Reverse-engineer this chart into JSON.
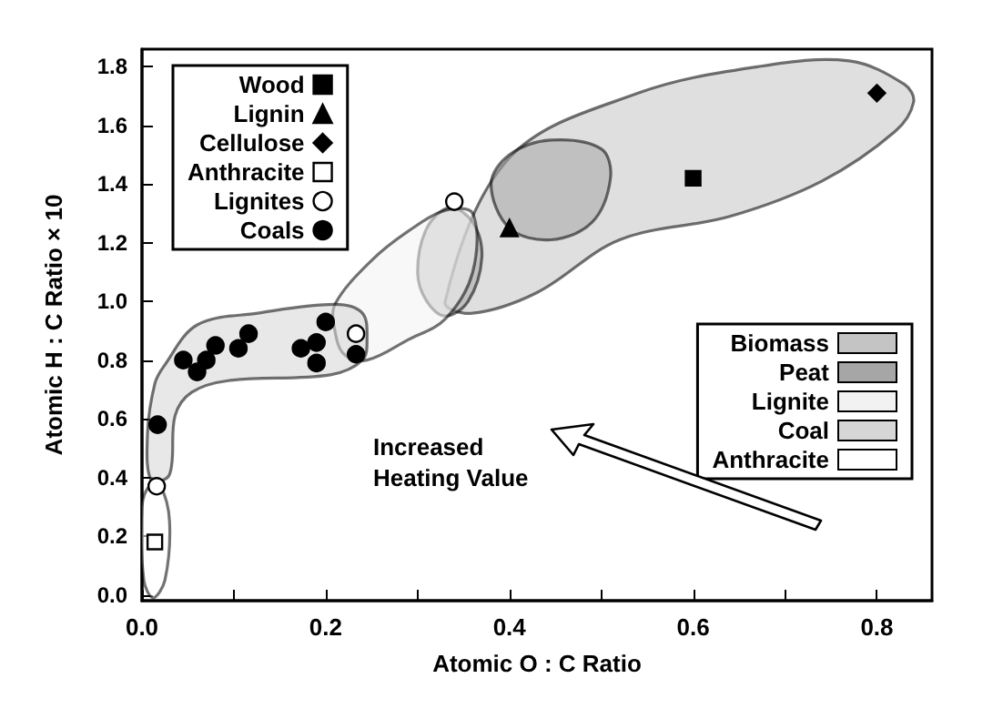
{
  "chart_data": {
    "type": "scatter",
    "xlabel": "Atomic O : C Ratio",
    "ylabel": "Atomic H : C Ratio × 10",
    "annotations": [
      "Increased Heating Value"
    ],
    "xlim": [
      0,
      0.86
    ],
    "ylim": [
      -0.02,
      1.86
    ],
    "xticks": [
      {
        "value": 0,
        "label": "0.0"
      },
      {
        "value": 0.1,
        "label": null
      },
      0.2,
      {
        "value": 0.3,
        "label": null
      },
      0.4,
      {
        "value": 0.5,
        "label": null
      },
      0.6,
      {
        "value": 0.7,
        "label": null
      },
      0.8
    ],
    "yticks": [
      {
        "value": 0,
        "label": "0.0"
      },
      0.2,
      0.4,
      0.6,
      0.8,
      {
        "value": 1,
        "label": "1.0"
      },
      1.2,
      1.4,
      1.6,
      1.8
    ],
    "grid": false,
    "legend": "top left",
    "series": [
      {
        "name": "Biomass",
        "type": "area",
        "color": "#c4c4c4",
        "x": [
          0.33,
          0.4,
          0.54,
          0.67,
          0.77,
          0.83,
          0.84,
          0.82,
          0.74,
          0.64,
          0.52,
          0.43,
          0.36
        ],
        "values": [
          1.0,
          1.49,
          1.71,
          1.8,
          1.82,
          1.74,
          1.68,
          1.58,
          1.41,
          1.29,
          1.21,
          1.03,
          0.96
        ]
      },
      {
        "name": "Peat",
        "type": "area",
        "color": "#a6a6a6",
        "x": [
          0.38,
          0.4,
          0.445,
          0.5,
          0.51,
          0.49,
          0.445,
          0.4,
          null,
          0.3,
          0.31,
          0.335,
          0.36,
          0.37,
          0.355,
          0.33,
          0.31
        ],
        "values": [
          1.4,
          1.5,
          1.55,
          1.52,
          1.42,
          1.27,
          1.21,
          1.25,
          null,
          1.1,
          1.25,
          1.32,
          1.27,
          1.15,
          1.0,
          0.95,
          1.0
        ]
      },
      {
        "name": "Lignite",
        "type": "area",
        "color": "#f2f2f2",
        "x": [
          0.21,
          0.25,
          0.29,
          0.33,
          0.36,
          0.36,
          0.33,
          0.29,
          0.245,
          0.22,
          0.21
        ],
        "values": [
          0.99,
          1.14,
          1.24,
          1.31,
          1.3,
          1.1,
          0.94,
          0.87,
          0.8,
          0.82,
          0.9
        ]
      },
      {
        "name": "Coal",
        "type": "area",
        "color": "#d6d6d6",
        "x": [
          0.024,
          0.06,
          0.126,
          0.21,
          0.24,
          0.245,
          0.24,
          0.205,
          0.094,
          0.054,
          0.036,
          0.03,
          0.01,
          0.006,
          0.014
        ],
        "values": [
          0.78,
          0.92,
          0.96,
          0.99,
          0.96,
          0.87,
          0.8,
          0.75,
          0.73,
          0.69,
          0.61,
          0.41,
          0.39,
          0.55,
          0.72
        ]
      },
      {
        "name": "Anthracite",
        "type": "area",
        "color": "#ffffff",
        "x": [
          0.0,
          0.008,
          0.02,
          0.03,
          0.025,
          0.012,
          0.002
        ],
        "values": [
          0.3,
          0.37,
          0.37,
          0.25,
          0.05,
          -0.01,
          0.05
        ]
      },
      {
        "name": "Wood",
        "marker": "square",
        "color": "#000000",
        "x": [
          0.6
        ],
        "values": [
          1.42
        ]
      },
      {
        "name": "Lignin",
        "marker": "triangle",
        "color": "#000000",
        "x": [
          0.4
        ],
        "values": [
          1.25
        ]
      },
      {
        "name": "Cellulose",
        "marker": "diamond",
        "color": "#000000",
        "x": [
          0.8
        ],
        "values": [
          1.71
        ]
      },
      {
        "name": "Anthracite",
        "marker": "square",
        "color": "#ffffff",
        "x": [
          0.014
        ],
        "values": [
          0.18
        ]
      },
      {
        "name": "Lignites",
        "marker": "circle",
        "color": "#ffffff",
        "x": [
          0.016,
          0.233,
          0.34
        ],
        "values": [
          0.37,
          0.89,
          1.34
        ]
      },
      {
        "name": "Coals",
        "marker": "circle",
        "color": "#000000",
        "x": [
          0.017,
          0.045,
          0.06,
          0.07,
          0.08,
          0.105,
          0.116,
          0.173,
          0.19,
          0.19,
          0.2,
          0.233
        ],
        "values": [
          0.58,
          0.8,
          0.76,
          0.8,
          0.85,
          0.84,
          0.89,
          0.84,
          0.86,
          0.79,
          0.93,
          0.82
        ]
      }
    ]
  }
}
